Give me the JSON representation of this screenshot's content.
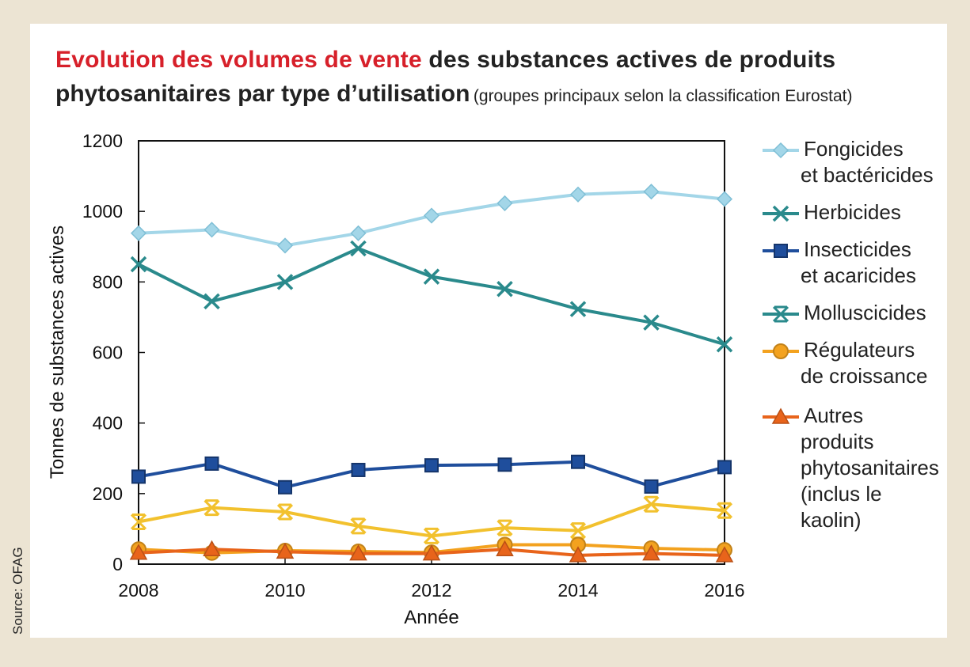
{
  "chart_data": {
    "type": "line",
    "title": [
      "Evolution des volumes de vente",
      "des substances actives de produits",
      "phytosanitaires par type d’utilisation"
    ],
    "subtitle": "(groupes principaux selon la classification Eurostat)",
    "source": "Source: OFAG",
    "y_label": "Tonnes de substances actives",
    "x_label": "Année",
    "x": [
      2008,
      2009,
      2010,
      2011,
      2012,
      2013,
      2014,
      2015,
      2016
    ],
    "xlim": [
      2008,
      2016
    ],
    "xticks": [
      2008,
      2010,
      2012,
      2014,
      2016
    ],
    "ylim": [
      0,
      1200
    ],
    "yticks": [
      0,
      200,
      400,
      600,
      800,
      1000,
      1200
    ],
    "grid": false,
    "legend": "right",
    "series": [
      {
        "name": "Fongicides\net bactéricides",
        "color": "#a3d6e8",
        "marker": "diamond",
        "values": [
          938,
          948,
          903,
          938,
          988,
          1023,
          1048,
          1056,
          1035
        ]
      },
      {
        "name": "Herbicides",
        "color": "#2a8a8c",
        "marker": "x",
        "values": [
          850,
          745,
          800,
          895,
          815,
          780,
          723,
          685,
          623
        ]
      },
      {
        "name": "Insecticides\net acaricides",
        "color": "#1f4e9c",
        "marker": "square",
        "values": [
          248,
          285,
          218,
          267,
          280,
          282,
          290,
          220,
          275
        ]
      },
      {
        "name": "Molluscicides",
        "color": "#f2c12e",
        "legend_color": "#2a8a8c",
        "marker": "star",
        "values": [
          120,
          160,
          148,
          108,
          80,
          103,
          95,
          170,
          152
        ]
      },
      {
        "name": "Régulateurs\nde croissance",
        "color": "#f3a21f",
        "marker": "circle",
        "values": [
          42,
          32,
          38,
          36,
          33,
          55,
          55,
          45,
          40
        ]
      },
      {
        "name": "Autres\nproduits\nphytosanitaires\n(inclus le kaolin)",
        "color": "#e8641b",
        "marker": "triangle",
        "values": [
          32,
          42,
          35,
          30,
          30,
          42,
          25,
          30,
          25
        ]
      }
    ]
  }
}
